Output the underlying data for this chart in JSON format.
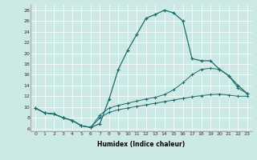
{
  "xlabel": "Humidex (Indice chaleur)",
  "ylabel": "",
  "xlim": [
    -0.5,
    23.5
  ],
  "ylim": [
    5.5,
    29
  ],
  "yticks": [
    6,
    8,
    10,
    12,
    14,
    16,
    18,
    20,
    22,
    24,
    26,
    28
  ],
  "xticks": [
    0,
    1,
    2,
    3,
    4,
    5,
    6,
    7,
    8,
    9,
    10,
    11,
    12,
    13,
    14,
    15,
    16,
    17,
    18,
    19,
    20,
    21,
    22,
    23
  ],
  "bg_color": "#cce9e5",
  "line_color": "#1a6b6b",
  "line1_x": [
    0,
    1,
    2,
    3,
    4,
    5,
    6,
    7,
    8,
    9,
    10,
    11,
    12,
    13,
    14,
    15,
    16,
    17,
    18,
    19,
    20,
    21,
    22,
    23
  ],
  "line1_y": [
    9.8,
    8.9,
    8.7,
    8.0,
    7.5,
    6.5,
    6.2,
    6.9,
    11.5,
    17.0,
    20.5,
    23.5,
    26.5,
    27.2,
    28.0,
    27.5,
    26.0,
    19.0,
    18.6,
    18.6,
    17.0,
    15.8,
    14.0,
    12.5
  ],
  "line2_x": [
    0,
    1,
    2,
    3,
    4,
    5,
    6,
    7,
    8,
    9,
    10,
    11,
    12,
    13,
    14,
    15,
    16,
    17,
    18,
    19,
    20,
    21,
    22,
    23
  ],
  "line2_y": [
    9.8,
    8.9,
    8.7,
    8.0,
    7.5,
    6.5,
    6.2,
    8.5,
    9.8,
    10.3,
    10.7,
    11.1,
    11.5,
    11.8,
    12.3,
    13.2,
    14.5,
    16.0,
    17.0,
    17.2,
    17.0,
    15.8,
    13.5,
    12.5
  ],
  "line3_x": [
    0,
    1,
    2,
    3,
    4,
    5,
    6,
    7,
    8,
    9,
    10,
    11,
    12,
    13,
    14,
    15,
    16,
    17,
    18,
    19,
    20,
    21,
    22,
    23
  ],
  "line3_y": [
    9.8,
    8.9,
    8.7,
    8.0,
    7.5,
    6.5,
    6.2,
    8.0,
    9.0,
    9.5,
    9.8,
    10.1,
    10.4,
    10.7,
    11.0,
    11.3,
    11.6,
    11.9,
    12.1,
    12.3,
    12.4,
    12.2,
    12.0,
    12.0
  ]
}
